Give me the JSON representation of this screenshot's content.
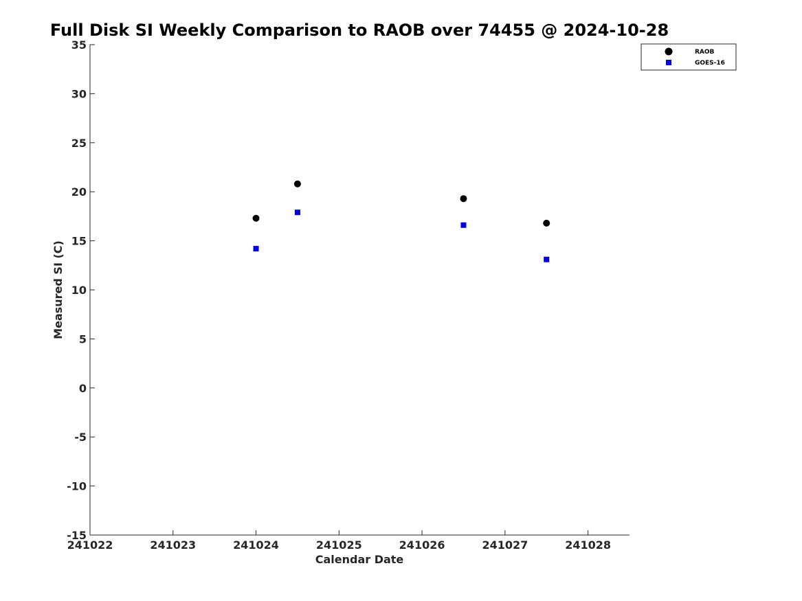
{
  "chart_data": {
    "type": "scatter",
    "title": "Full Disk SI Weekly Comparison to RAOB over 74455 @ 2024-10-28",
    "xlabel": "Calendar Date",
    "ylabel": "Measured SI (C)",
    "xlim": [
      241022,
      241028.5
    ],
    "ylim": [
      -15,
      35
    ],
    "xticks": [
      241022,
      241023,
      241024,
      241025,
      241026,
      241027,
      241028
    ],
    "xtick_labels": [
      "241022",
      "241023",
      "241024",
      "241025",
      "241026",
      "241027",
      "241028"
    ],
    "yticks": [
      35,
      30,
      25,
      20,
      15,
      10,
      5,
      0,
      -5,
      -10,
      -15
    ],
    "ytick_labels": [
      "35",
      "30",
      "25",
      "20",
      "15",
      "10",
      "5",
      "0",
      "-5",
      "-10",
      "-15"
    ],
    "grid": false,
    "legend_position": "top-right",
    "series": [
      {
        "name": "RAOB",
        "marker": "circle",
        "color": "#000000",
        "x": [
          241024,
          241024.5,
          241026.5,
          241027.5
        ],
        "y": [
          17.3,
          20.8,
          19.3,
          16.8
        ]
      },
      {
        "name": "GOES-16",
        "marker": "square",
        "color": "#0000e6",
        "x": [
          241024,
          241024.5,
          241026.5,
          241027.5
        ],
        "y": [
          14.2,
          17.9,
          16.6,
          13.1
        ]
      }
    ]
  }
}
